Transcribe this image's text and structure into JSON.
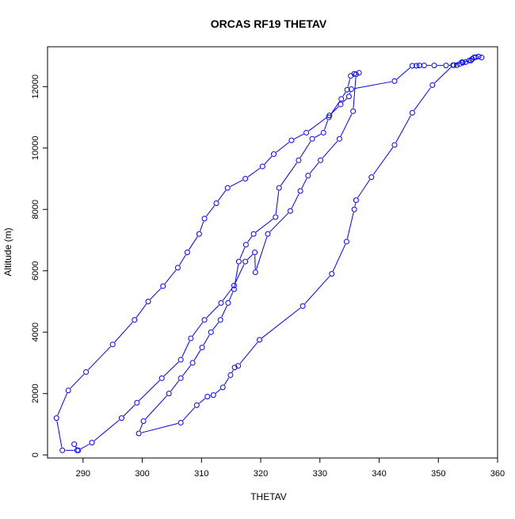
{
  "chart_data": {
    "type": "line",
    "title": "ORCAS RF19 THETAV",
    "xlabel": "THETAV",
    "ylabel": "Altitude (m)",
    "xlim": [
      284,
      360
    ],
    "ylim": [
      -100,
      13300
    ],
    "xticks": [
      290,
      300,
      310,
      320,
      330,
      340,
      350,
      360
    ],
    "yticks": [
      0,
      2000,
      4000,
      6000,
      8000,
      10000,
      12000
    ],
    "series_color": "#0000ff",
    "marker": "open-circle",
    "x": [
      357.3,
      356.8,
      356.3,
      355.7,
      355.2,
      354.6,
      354.1,
      353.6,
      353.1,
      352.6,
      351.3,
      349.3,
      347.6,
      346.8,
      346.3,
      345.6,
      342.6,
      335.3,
      334.9,
      333.5,
      331.6,
      327.7,
      325.2,
      322.2,
      320.3,
      317.4,
      314.4,
      312.5,
      310.5,
      309.6,
      307.6,
      306.0,
      303.5,
      301.0,
      298.7,
      295.0,
      290.5,
      287.5,
      285.5,
      286.5,
      289.0,
      288.5,
      289.2,
      291.5,
      296.5,
      299.1,
      303.3,
      306.5,
      308.2,
      310.5,
      313.3,
      315.5,
      317.4,
      319.0,
      319.1,
      321.2,
      325.0,
      326.7,
      328.0,
      330.1,
      333.3,
      335.6,
      336.1,
      336.6,
      335.8,
      335.2,
      334.6,
      333.6,
      331.5,
      330.6,
      328.7,
      326.4,
      323.1,
      322.5,
      318.8,
      317.5,
      316.3,
      315.5,
      314.5,
      313.2,
      311.6,
      310.1,
      308.5,
      306.5,
      304.5,
      300.2,
      299.4,
      306.5,
      309.2,
      311.0,
      312.0,
      313.6,
      314.9,
      315.6,
      316.2,
      319.8,
      327.1,
      332.0,
      334.5,
      335.8,
      336.1,
      338.7,
      342.6,
      345.6,
      349.0,
      352.5,
      354.0,
      355.5,
      356.0
    ],
    "y": [
      12950,
      12980,
      12960,
      12900,
      12850,
      12800,
      12780,
      12740,
      12700,
      12700,
      12690,
      12690,
      12690,
      12690,
      12680,
      12680,
      12180,
      11920,
      11680,
      11420,
      11060,
      10500,
      10250,
      9800,
      9400,
      9000,
      8700,
      8200,
      7700,
      7200,
      6600,
      6100,
      5500,
      5000,
      4400,
      3600,
      2700,
      2100,
      1200,
      150,
      150,
      350,
      150,
      400,
      1200,
      1700,
      2500,
      3100,
      3800,
      4400,
      4950,
      5520,
      6300,
      6600,
      5950,
      7200,
      7950,
      8600,
      9100,
      9600,
      10300,
      11200,
      12400,
      12450,
      12420,
      12350,
      11900,
      11600,
      11000,
      10500,
      10300,
      9600,
      8700,
      7750,
      7200,
      6850,
      6300,
      5400,
      4950,
      4400,
      4000,
      3500,
      3000,
      2500,
      2000,
      1100,
      700,
      1050,
      1620,
      1900,
      1950,
      2200,
      2600,
      2850,
      2900,
      3750,
      4850,
      5900,
      6950,
      8000,
      8300,
      9050,
      10100,
      11150,
      12050,
      12700,
      12800,
      12850,
      12950
    ]
  }
}
